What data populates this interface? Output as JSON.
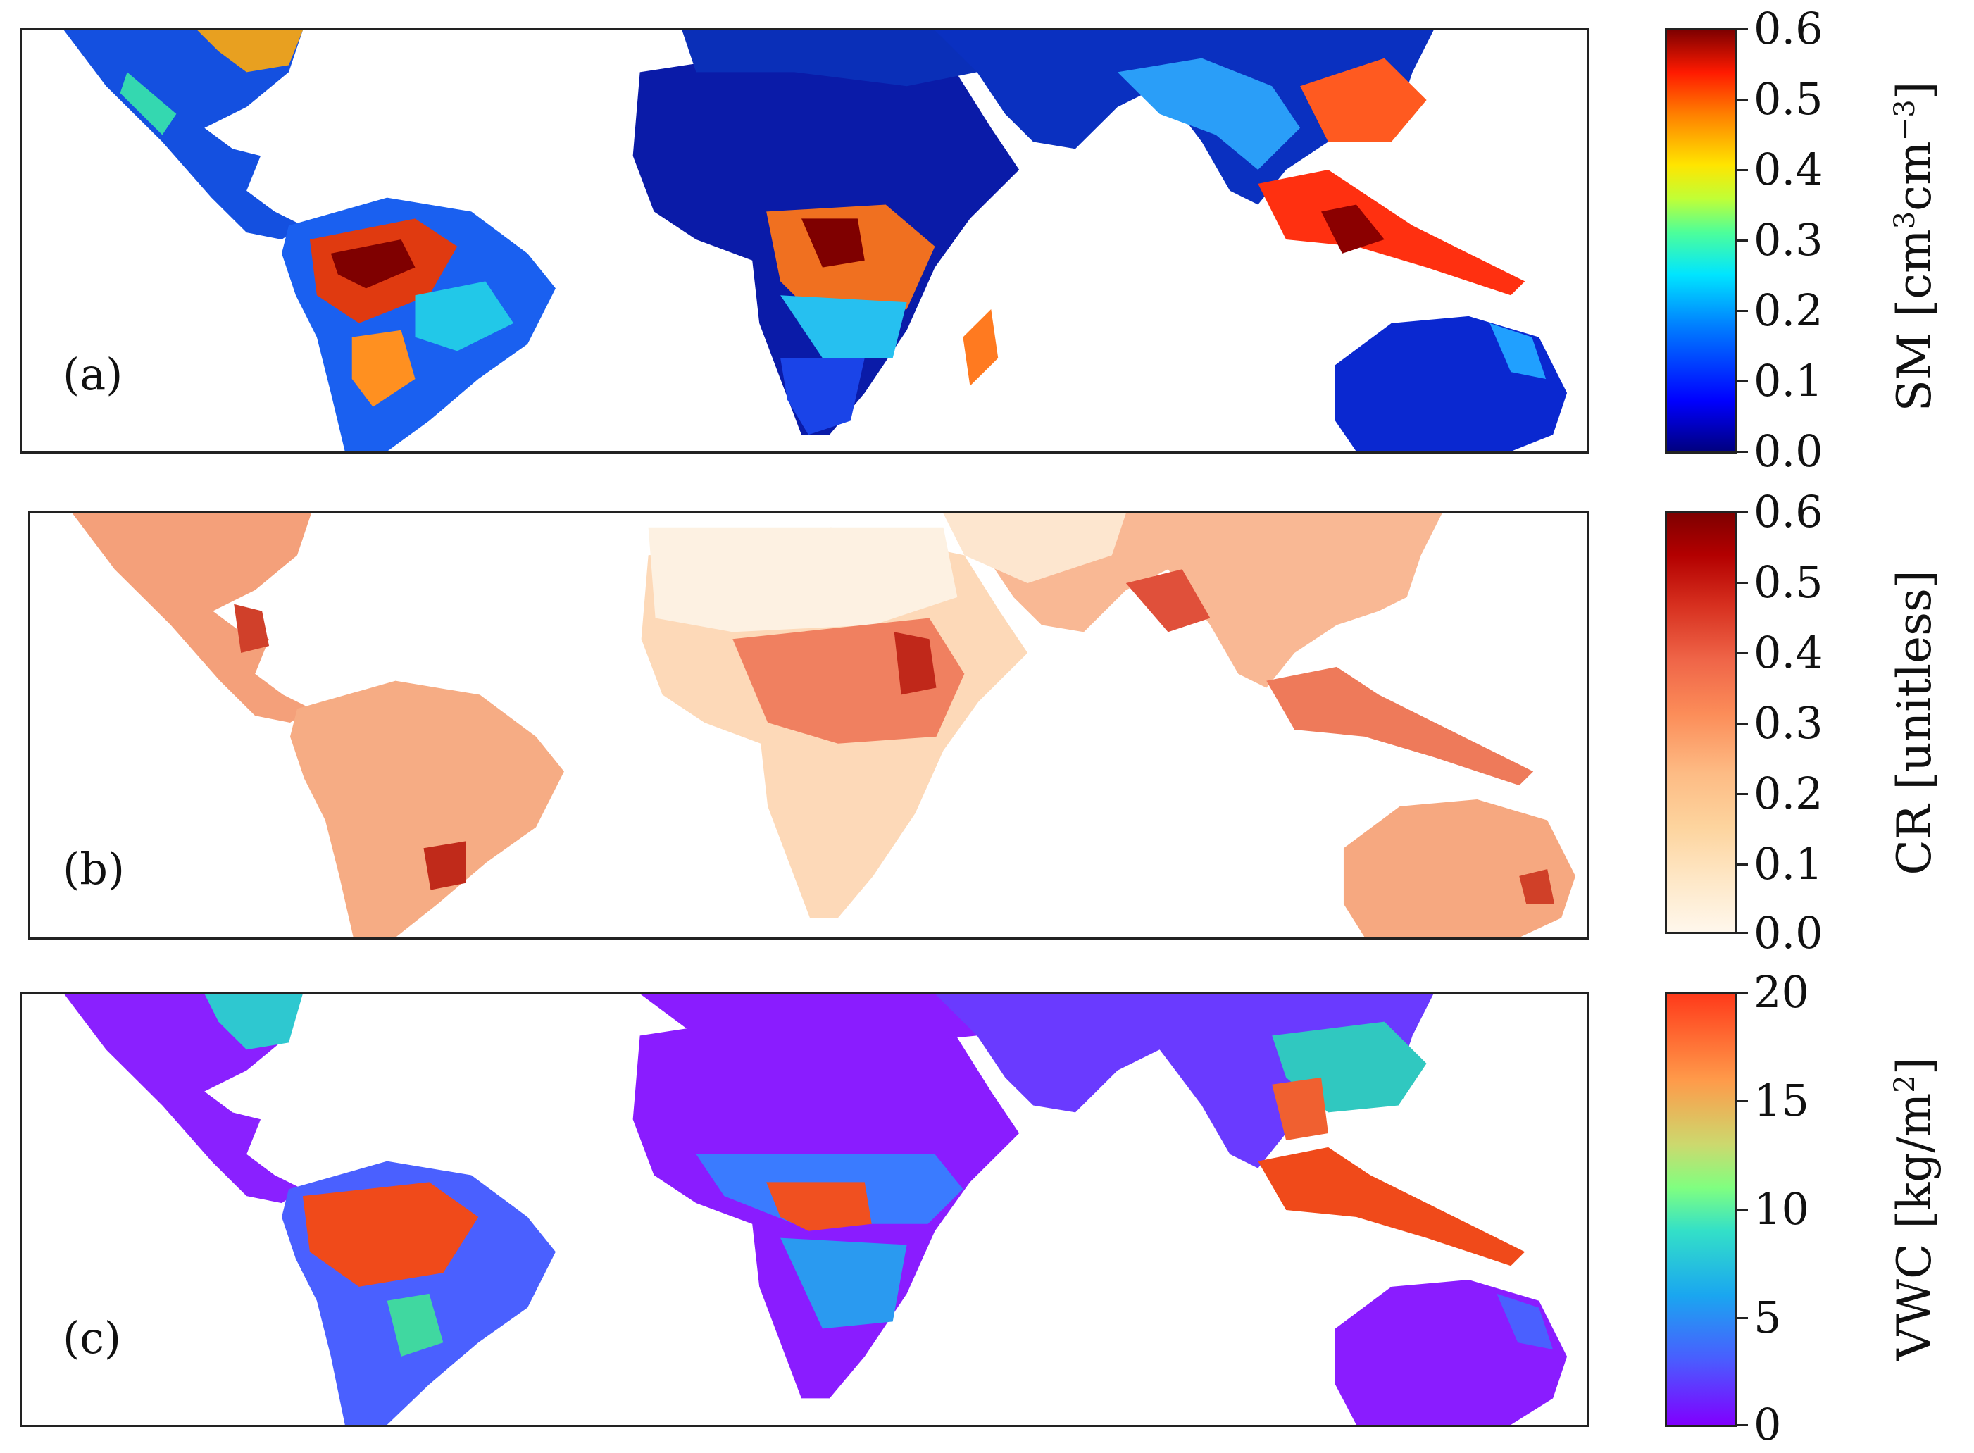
{
  "panels": [
    {
      "label": "(a)",
      "colorbar": {
        "ticks": [
          "0.6",
          "0.5",
          "0.4",
          "0.3",
          "0.2",
          "0.1",
          "0.0"
        ],
        "title_main": "SM [cm",
        "title_sup1": "3",
        "title_mid": "cm",
        "title_sup2": "−3",
        "title_end": "]",
        "colormap": "jet",
        "colors": [
          "#00007f",
          "#0000ff",
          "#0080ff",
          "#00e5ff",
          "#4dff9a",
          "#c0ff36",
          "#ffe500",
          "#ff8000",
          "#ff1a00",
          "#7f0000"
        ]
      },
      "regions": {
        "ocean": "#ffffff",
        "dry": "#0a1ba8",
        "moderate": "#1e7bff",
        "wet": "#ff5a10",
        "very_wet": "#8b0000"
      }
    },
    {
      "label": "(b)",
      "colorbar": {
        "ticks": [
          "0.6",
          "0.5",
          "0.4",
          "0.3",
          "0.2",
          "0.1",
          "0.0"
        ],
        "title_main": "CR [unitless]",
        "colormap": "OrRd",
        "colors": [
          "#fff7ec",
          "#fee8c8",
          "#fdd49e",
          "#fdbb84",
          "#fc8d59",
          "#ef6548",
          "#d7301f",
          "#b30000",
          "#7f0000"
        ]
      },
      "regions": {
        "ocean": "#ffffff",
        "dry": "#fdebd8",
        "moderate": "#f8a67e",
        "wet": "#e25a3c"
      }
    },
    {
      "label": "(c)",
      "colorbar": {
        "ticks": [
          "20",
          "15",
          "10",
          "5",
          "0"
        ],
        "title_main": "VWC [kg/m",
        "title_sup1": "2",
        "title_end": "]",
        "colormap": "rainbow",
        "colors": [
          "#8000ff",
          "#4a5cff",
          "#1aa6f0",
          "#33e0c8",
          "#80ff80",
          "#ccd96e",
          "#ff9a4a",
          "#ff3a1a"
        ]
      },
      "regions": {
        "ocean": "#ffffff",
        "dry": "#8a1cff",
        "moderate": "#3a7bff",
        "wet": "#ff4a1a"
      }
    }
  ]
}
